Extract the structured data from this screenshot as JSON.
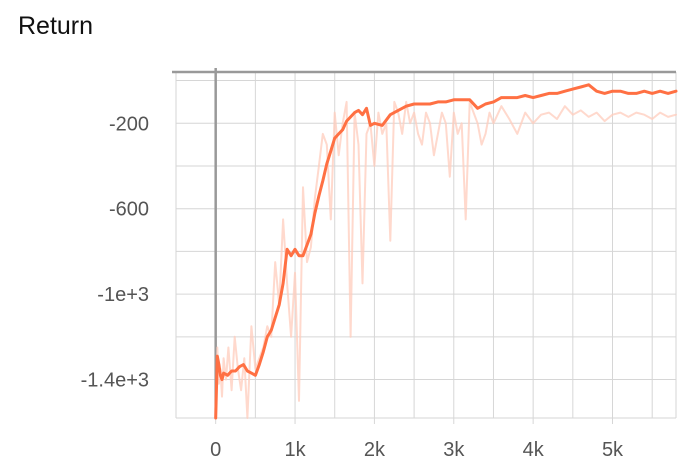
{
  "chart_data": {
    "type": "line",
    "title": "Return",
    "xlabel": "",
    "ylabel": "",
    "xlim": [
      -500,
      5800
    ],
    "ylim": [
      -1580,
      40
    ],
    "x_ticks": [
      {
        "value": 0,
        "label": "0"
      },
      {
        "value": 1000,
        "label": "1k"
      },
      {
        "value": 2000,
        "label": "2k"
      },
      {
        "value": 3000,
        "label": "3k"
      },
      {
        "value": 4000,
        "label": "4k"
      },
      {
        "value": 5000,
        "label": "5k"
      }
    ],
    "y_ticks": [
      {
        "value": -200,
        "label": "-200"
      },
      {
        "value": -600,
        "label": "-600"
      },
      {
        "value": -1000,
        "label": "-1e+3"
      },
      {
        "value": -1400,
        "label": "-1.4e+3"
      }
    ],
    "grid": true,
    "colors": {
      "smoothed": "#ff7043",
      "raw": "#ffccbc",
      "grid": "#d6d6d6",
      "axis": "#999999"
    },
    "series": [
      {
        "role": "raw",
        "x": [
          0,
          20,
          40,
          60,
          80,
          100,
          130,
          160,
          200,
          240,
          280,
          320,
          360,
          400,
          450,
          500,
          550,
          600,
          650,
          700,
          750,
          800,
          850,
          900,
          950,
          1000,
          1050,
          1100,
          1150,
          1200,
          1250,
          1300,
          1350,
          1400,
          1450,
          1500,
          1550,
          1600,
          1650,
          1700,
          1750,
          1800,
          1850,
          1900,
          1950,
          2000,
          2050,
          2100,
          2150,
          2200,
          2250,
          2300,
          2350,
          2400,
          2450,
          2500,
          2550,
          2600,
          2650,
          2700,
          2750,
          2800,
          2850,
          2900,
          2950,
          3000,
          3050,
          3100,
          3150,
          3200,
          3250,
          3300,
          3350,
          3400,
          3450,
          3500,
          3600,
          3700,
          3800,
          3900,
          4000,
          4100,
          4200,
          4300,
          4400,
          4500,
          4600,
          4700,
          4800,
          4900,
          5000,
          5100,
          5200,
          5300,
          5400,
          5500,
          5600,
          5700,
          5800
        ],
        "y": [
          -1580,
          -1250,
          -1420,
          -1350,
          -1480,
          -1300,
          -1400,
          -1250,
          -1450,
          -1200,
          -1350,
          -1450,
          -1300,
          -1580,
          -1150,
          -1350,
          -1300,
          -1250,
          -1150,
          -1200,
          -850,
          -1050,
          -650,
          -950,
          -1200,
          -900,
          -1500,
          -500,
          -850,
          -780,
          -550,
          -400,
          -250,
          -300,
          -650,
          -150,
          -350,
          -200,
          -100,
          -1200,
          -150,
          -300,
          -950,
          -250,
          -200,
          -400,
          -150,
          -250,
          -200,
          -750,
          -100,
          -150,
          -250,
          -100,
          -200,
          -150,
          -250,
          -300,
          -150,
          -200,
          -350,
          -250,
          -150,
          -200,
          -450,
          -150,
          -250,
          -200,
          -650,
          -100,
          -150,
          -200,
          -300,
          -250,
          -150,
          -200,
          -120,
          -180,
          -250,
          -150,
          -200,
          -160,
          -150,
          -180,
          -120,
          -160,
          -140,
          -170,
          -150,
          -190,
          -160,
          -150,
          -170,
          -150,
          -160,
          -180,
          -150,
          -170,
          -160
        ]
      },
      {
        "role": "smoothed",
        "x": [
          0,
          20,
          40,
          60,
          80,
          100,
          150,
          200,
          250,
          300,
          350,
          400,
          450,
          500,
          550,
          600,
          650,
          700,
          750,
          800,
          850,
          900,
          950,
          1000,
          1050,
          1100,
          1150,
          1200,
          1250,
          1300,
          1350,
          1400,
          1450,
          1500,
          1550,
          1600,
          1650,
          1700,
          1750,
          1800,
          1850,
          1900,
          1950,
          2000,
          2100,
          2200,
          2300,
          2400,
          2500,
          2600,
          2700,
          2800,
          2900,
          3000,
          3100,
          3200,
          3300,
          3350,
          3400,
          3500,
          3600,
          3700,
          3800,
          3900,
          4000,
          4100,
          4200,
          4300,
          4400,
          4500,
          4600,
          4700,
          4800,
          4900,
          5000,
          5100,
          5200,
          5300,
          5400,
          5500,
          5600,
          5700,
          5800
        ],
        "y": [
          -1580,
          -1290,
          -1330,
          -1380,
          -1400,
          -1370,
          -1380,
          -1360,
          -1360,
          -1340,
          -1330,
          -1360,
          -1370,
          -1380,
          -1330,
          -1270,
          -1200,
          -1170,
          -1110,
          -1050,
          -950,
          -790,
          -820,
          -790,
          -820,
          -820,
          -770,
          -720,
          -620,
          -540,
          -470,
          -390,
          -330,
          -270,
          -250,
          -230,
          -190,
          -170,
          -150,
          -140,
          -160,
          -130,
          -210,
          -200,
          -210,
          -160,
          -140,
          -120,
          -110,
          -110,
          -110,
          -100,
          -100,
          -90,
          -90,
          -90,
          -130,
          -120,
          -110,
          -100,
          -80,
          -80,
          -80,
          -70,
          -80,
          -70,
          -60,
          -60,
          -50,
          -40,
          -30,
          -20,
          -50,
          -60,
          -50,
          -50,
          -60,
          -60,
          -50,
          -60,
          -50,
          -60,
          -50
        ]
      }
    ]
  }
}
